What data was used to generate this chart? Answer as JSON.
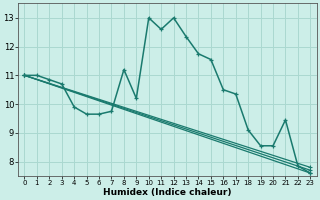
{
  "title": "",
  "xlabel": "Humidex (Indice chaleur)",
  "bg_color": "#cceee8",
  "grid_color": "#aad8d0",
  "line_color": "#1a7a6e",
  "xlim": [
    -0.5,
    23.5
  ],
  "ylim": [
    7.5,
    13.5
  ],
  "xticks": [
    0,
    1,
    2,
    3,
    4,
    5,
    6,
    7,
    8,
    9,
    10,
    11,
    12,
    13,
    14,
    15,
    16,
    17,
    18,
    19,
    20,
    21,
    22,
    23
  ],
  "yticks": [
    8,
    9,
    10,
    11,
    12,
    13
  ],
  "main_line": {
    "x": [
      0,
      1,
      2,
      3,
      4,
      5,
      6,
      7,
      8,
      9,
      10,
      11,
      12,
      13,
      14,
      15,
      16,
      17,
      18,
      19,
      20,
      21,
      22,
      23
    ],
    "y": [
      11.0,
      11.0,
      10.85,
      10.7,
      9.9,
      9.65,
      9.65,
      9.75,
      11.2,
      10.2,
      13.0,
      12.6,
      13.0,
      12.35,
      11.75,
      11.55,
      10.5,
      10.35,
      9.1,
      8.55,
      8.55,
      9.45,
      7.85,
      7.6
    ]
  },
  "straight_lines": [
    {
      "x": [
        0,
        23
      ],
      "y": [
        11.0,
        7.6
      ]
    },
    {
      "x": [
        0,
        23
      ],
      "y": [
        11.0,
        7.7
      ]
    },
    {
      "x": [
        0,
        23
      ],
      "y": [
        11.0,
        7.8
      ]
    }
  ]
}
